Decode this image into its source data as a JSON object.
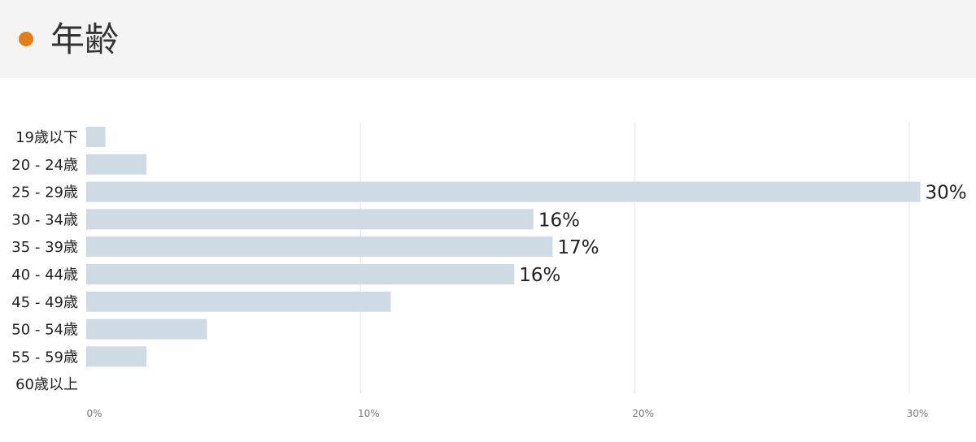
{
  "header": {
    "title": "年齢"
  },
  "colors": {
    "accent": "#e67e17",
    "bar": "#cfdbe4",
    "grid": "#e6e6e6"
  },
  "chart_data": {
    "type": "bar",
    "orientation": "horizontal",
    "title": "年齢",
    "categories": [
      "19歳以下",
      "20 - 24歳",
      "25 - 29歳",
      "30 - 34歳",
      "35 - 39歳",
      "40 - 44歳",
      "45 - 49歳",
      "50 - 54歳",
      "55 - 59歳",
      "60歳以上"
    ],
    "values": [
      0.7,
      2.2,
      30.4,
      16.3,
      17.0,
      15.6,
      11.1,
      4.4,
      2.2,
      0
    ],
    "data_labels": [
      "",
      "",
      "30%",
      "16%",
      "17%",
      "16%",
      "",
      "",
      "",
      ""
    ],
    "xticks": [
      "0%",
      "10%",
      "20%",
      "30%"
    ],
    "xlim": [
      0,
      30
    ],
    "grid": true,
    "xlabel": "",
    "ylabel": ""
  }
}
